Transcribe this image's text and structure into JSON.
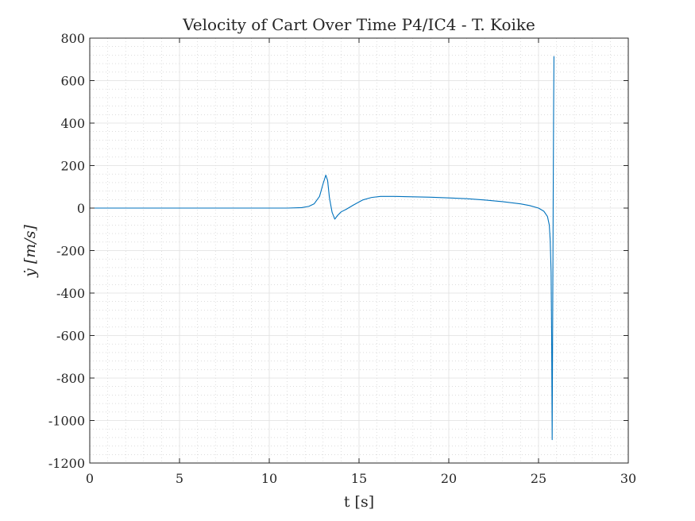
{
  "chart_data": {
    "type": "line",
    "title": "Velocity of Cart Over Time P4/IC4 - T. Koike",
    "xlabel": "t [s]",
    "ylabel": "ẏ [m/s]",
    "xlim": [
      0,
      30
    ],
    "ylim": [
      -1200,
      800
    ],
    "xticks": [
      0,
      5,
      10,
      15,
      20,
      25,
      30
    ],
    "yticks": [
      800,
      600,
      400,
      200,
      0,
      -200,
      -400,
      -600,
      -800,
      -1000,
      -1200
    ],
    "grid": true,
    "minor_grid": true,
    "colors": {
      "series": "#0072BD",
      "axis": "#262626",
      "major_grid": "#dfdfdf",
      "minor_grid": "#c8c8c8"
    },
    "series": [
      {
        "x": [
          0,
          2,
          4,
          6,
          8,
          10,
          11,
          11.8,
          12.2,
          12.5,
          12.8,
          13.0,
          13.15,
          13.25,
          13.35,
          13.5,
          13.65,
          13.8,
          14.0,
          14.3,
          14.7,
          15.2,
          15.7,
          16.2,
          17.0,
          18.0,
          19.0,
          20.0,
          21.0,
          22.0,
          23.0,
          24.0,
          24.5,
          25.0,
          25.3,
          25.5,
          25.6,
          25.65,
          25.7,
          25.73,
          25.76,
          25.78,
          25.8,
          25.82,
          25.84,
          25.86
        ],
        "y": [
          0,
          0,
          0,
          0,
          0,
          0,
          0,
          2,
          8,
          20,
          55,
          115,
          155,
          130,
          50,
          -20,
          -52,
          -35,
          -18,
          -5,
          15,
          38,
          50,
          55,
          55,
          53,
          51,
          48,
          44,
          38,
          30,
          20,
          12,
          0,
          -15,
          -40,
          -80,
          -150,
          -300,
          -600,
          -1090,
          -700,
          -300,
          100,
          450,
          715
        ]
      }
    ]
  }
}
